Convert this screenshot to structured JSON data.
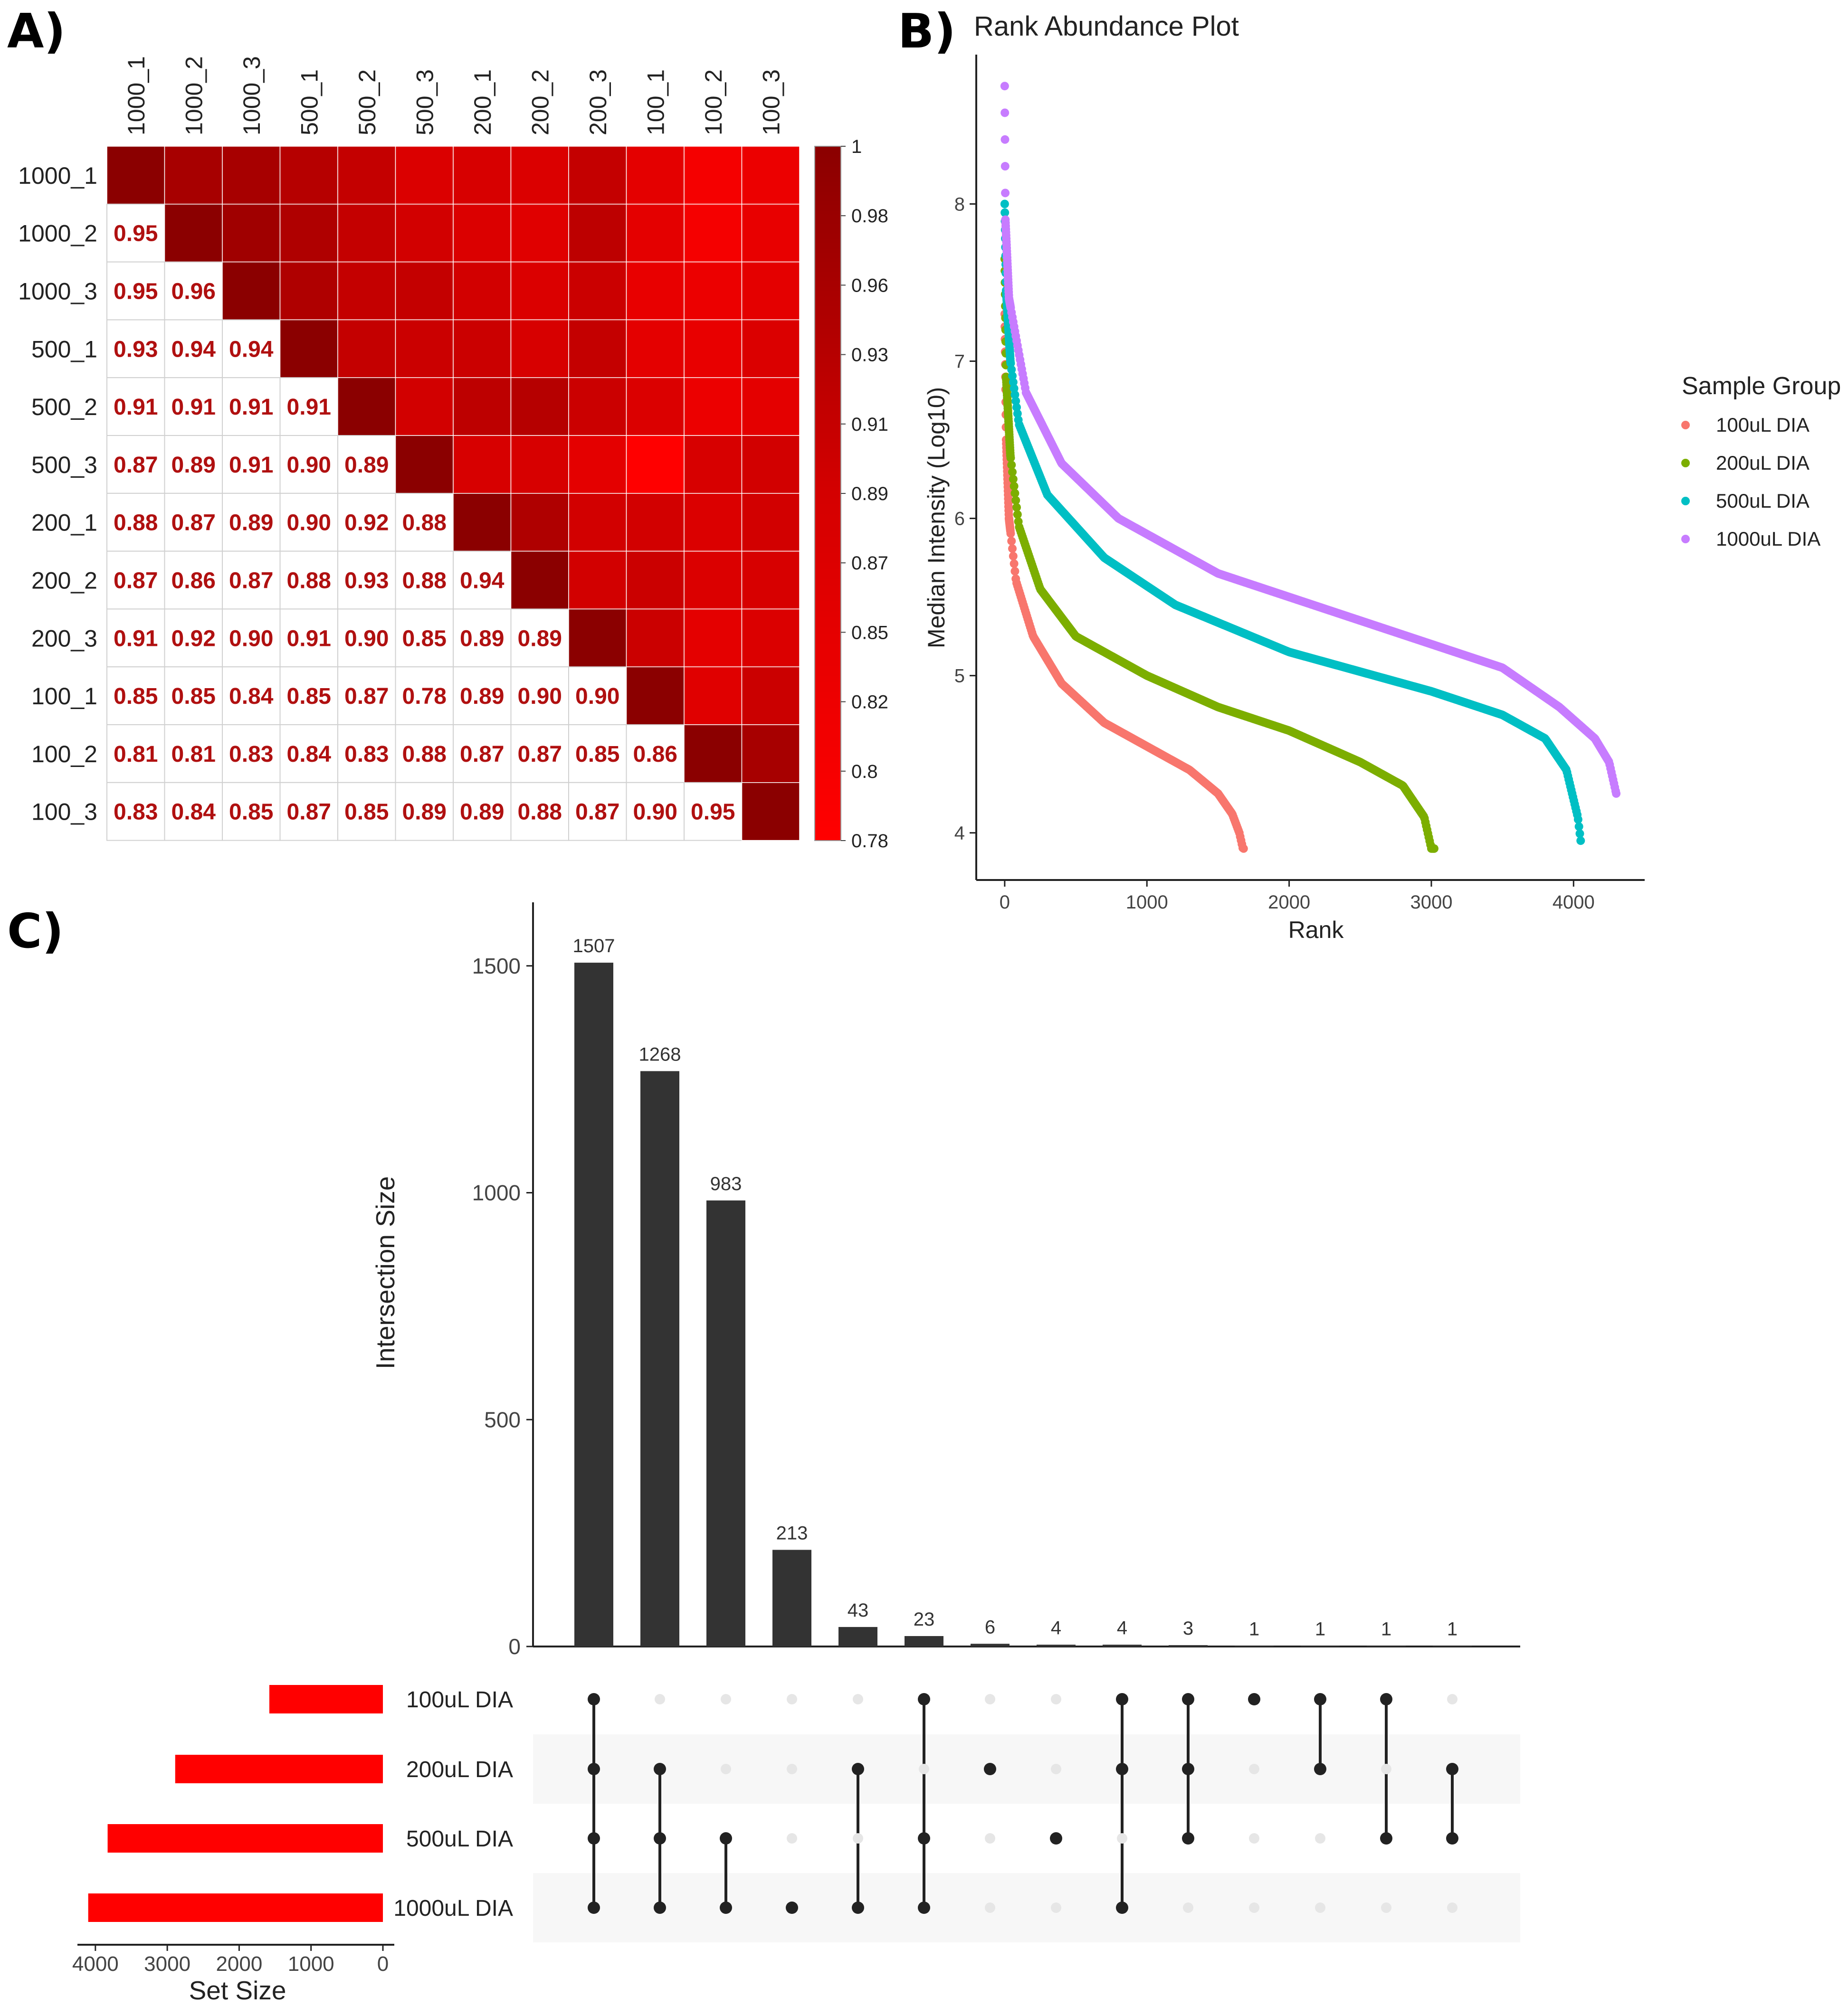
{
  "panel_labels": {
    "a": "A)",
    "b": "B)",
    "c": "C)"
  },
  "colors": {
    "dark_red": "#8b0000",
    "mid_red": "#d40000",
    "bright_red": "#ff0000",
    "value_text": "#b01010",
    "bar": "#333333",
    "set_bar": "#ff0000",
    "dot_on": "#222222",
    "dot_off": "#e6e6e6",
    "series_100": "#f8766d",
    "series_200": "#7cae00",
    "series_500": "#00bfc4",
    "series_1000": "#c77cff"
  },
  "chart_data": [
    {
      "type": "heatmap",
      "panel": "A",
      "samples": [
        "1000_1",
        "1000_2",
        "1000_3",
        "500_1",
        "500_2",
        "500_3",
        "200_1",
        "200_2",
        "200_3",
        "100_1",
        "100_2",
        "100_3"
      ],
      "lower_triangle_rows": [
        [],
        [
          "0.95"
        ],
        [
          "0.95",
          "0.96"
        ],
        [
          "0.93",
          "0.94",
          "0.94"
        ],
        [
          "0.91",
          "0.91",
          "0.91",
          "0.91"
        ],
        [
          "0.87",
          "0.89",
          "0.91",
          "0.90",
          "0.89"
        ],
        [
          "0.88",
          "0.87",
          "0.89",
          "0.90",
          "0.92",
          "0.88"
        ],
        [
          "0.87",
          "0.86",
          "0.87",
          "0.88",
          "0.93",
          "0.88",
          "0.94"
        ],
        [
          "0.91",
          "0.92",
          "0.90",
          "0.91",
          "0.90",
          "0.85",
          "0.89",
          "0.89"
        ],
        [
          "0.85",
          "0.85",
          "0.84",
          "0.85",
          "0.87",
          "0.78",
          "0.89",
          "0.90",
          "0.90"
        ],
        [
          "0.81",
          "0.81",
          "0.83",
          "0.84",
          "0.83",
          "0.88",
          "0.87",
          "0.87",
          "0.85",
          "0.86"
        ],
        [
          "0.83",
          "0.84",
          "0.85",
          "0.87",
          "0.85",
          "0.89",
          "0.89",
          "0.88",
          "0.87",
          "0.90",
          "0.95"
        ]
      ],
      "diagonal_value": 1,
      "colorbar_ticks": [
        "1",
        "0.98",
        "0.96",
        "0.93",
        "0.91",
        "0.89",
        "0.87",
        "0.85",
        "0.82",
        "0.8",
        "0.78"
      ],
      "color_range": [
        0.78,
        1
      ]
    },
    {
      "type": "scatter",
      "panel": "B",
      "title": "Rank Abundance Plot",
      "xlabel": "Rank",
      "ylabel": "Median Intensity (Log10)",
      "xlim": [
        -200,
        4500
      ],
      "ylim": [
        3.7,
        8.95
      ],
      "x_ticks": [
        0,
        1000,
        2000,
        3000,
        4000
      ],
      "y_ticks": [
        4,
        5,
        6,
        7,
        8
      ],
      "legend_title": "Sample Group",
      "series": [
        {
          "name": "100uL DIA",
          "color_key": "series_100",
          "n": 1680,
          "curve": [
            [
              0,
              7.3
            ],
            [
              10,
              6.5
            ],
            [
              30,
              6.0
            ],
            [
              80,
              5.6
            ],
            [
              200,
              5.25
            ],
            [
              400,
              4.95
            ],
            [
              700,
              4.7
            ],
            [
              1000,
              4.55
            ],
            [
              1300,
              4.4
            ],
            [
              1500,
              4.25
            ],
            [
              1600,
              4.12
            ],
            [
              1650,
              4.0
            ],
            [
              1675,
              3.9
            ]
          ]
        },
        {
          "name": "200uL DIA",
          "color_key": "series_200",
          "n": 3020,
          "curve": [
            [
              0,
              7.65
            ],
            [
              10,
              6.9
            ],
            [
              40,
              6.4
            ],
            [
              100,
              5.95
            ],
            [
              250,
              5.55
            ],
            [
              500,
              5.25
            ],
            [
              1000,
              5.0
            ],
            [
              1500,
              4.8
            ],
            [
              2000,
              4.65
            ],
            [
              2500,
              4.45
            ],
            [
              2800,
              4.3
            ],
            [
              2950,
              4.1
            ],
            [
              3000,
              3.9
            ]
          ]
        },
        {
          "name": "500uL DIA",
          "color_key": "series_500",
          "n": 4050,
          "curve": [
            [
              0,
              8.0
            ],
            [
              10,
              7.45
            ],
            [
              40,
              7.0
            ],
            [
              100,
              6.6
            ],
            [
              300,
              6.15
            ],
            [
              700,
              5.75
            ],
            [
              1200,
              5.45
            ],
            [
              2000,
              5.15
            ],
            [
              3000,
              4.9
            ],
            [
              3500,
              4.75
            ],
            [
              3800,
              4.6
            ],
            [
              3950,
              4.4
            ],
            [
              4030,
              4.1
            ],
            [
              4050,
              3.95
            ]
          ]
        },
        {
          "name": "1000uL DIA",
          "color_key": "series_1000",
          "n": 4300,
          "curve": [
            [
              0,
              8.75
            ],
            [
              5,
              7.9
            ],
            [
              30,
              7.4
            ],
            [
              150,
              6.8
            ],
            [
              400,
              6.35
            ],
            [
              800,
              6.0
            ],
            [
              1500,
              5.65
            ],
            [
              2500,
              5.35
            ],
            [
              3500,
              5.05
            ],
            [
              3900,
              4.8
            ],
            [
              4150,
              4.6
            ],
            [
              4250,
              4.45
            ],
            [
              4300,
              4.25
            ]
          ]
        }
      ]
    },
    {
      "type": "bar",
      "panel": "C-intersections",
      "ylabel": "Intersection Size",
      "ylim": [
        0,
        1640
      ],
      "y_ticks": [
        0,
        500,
        1000,
        1500
      ],
      "values": [
        1507,
        1268,
        983,
        213,
        43,
        23,
        6,
        4,
        4,
        3,
        1,
        1,
        1,
        1
      ],
      "value_labels": [
        "1507",
        "1268",
        "983",
        "213",
        "43",
        "23",
        "6",
        "4",
        "4",
        "3",
        "1",
        "1",
        "1",
        "1"
      ],
      "sets": [
        "100uL DIA",
        "200uL DIA",
        "500uL DIA",
        "1000uL DIA"
      ],
      "membership": [
        [
          1,
          1,
          1,
          1
        ],
        [
          0,
          1,
          1,
          1
        ],
        [
          0,
          0,
          1,
          1
        ],
        [
          0,
          0,
          0,
          1
        ],
        [
          0,
          1,
          0,
          1
        ],
        [
          1,
          0,
          1,
          1
        ],
        [
          0,
          1,
          0,
          0
        ],
        [
          0,
          0,
          1,
          0
        ],
        [
          1,
          1,
          0,
          1
        ],
        [
          1,
          1,
          1,
          0
        ],
        [
          1,
          0,
          0,
          0
        ],
        [
          1,
          1,
          0,
          0
        ],
        [
          1,
          0,
          1,
          0
        ],
        [
          0,
          1,
          1,
          0
        ]
      ]
    },
    {
      "type": "bar",
      "panel": "C-set-size",
      "xlabel": "Set Size",
      "categories": [
        "100uL DIA",
        "200uL DIA",
        "500uL DIA",
        "1000uL DIA"
      ],
      "values": [
        1580,
        2890,
        3830,
        4100
      ],
      "xlim": [
        4250,
        0
      ],
      "x_ticks": [
        "4000",
        "3000",
        "2000",
        "1000",
        "0"
      ]
    }
  ]
}
